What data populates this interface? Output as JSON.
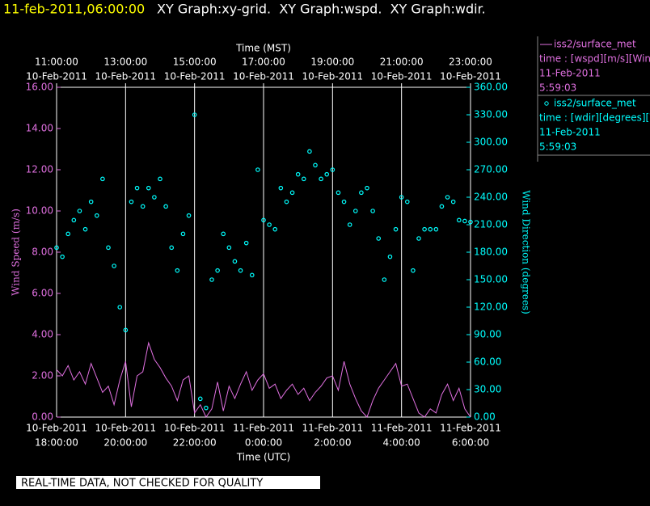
{
  "chart_data": {
    "type": "xy",
    "title_time": "11-feb-2011,06:00:00",
    "title": "XY Graph:xy-grid.  XY Graph:wspd.  XY Graph:wdir.",
    "x_top_label": "Time (MST)",
    "x_label": "Time (UTC)",
    "y_label": "Wind Speed (m/s)",
    "y2_label": "Wind Direction (degrees)",
    "footer": "REAL-TIME DATA, NOT CHECKED FOR QUALITY",
    "grid": true,
    "xlim": [
      "2011-02-10T18:00",
      "2011-02-11T06:00"
    ],
    "xticks": [
      {
        "value": "2011-02-10T18:00",
        "label": [
          "10-Feb-2011",
          "18:00:00"
        ]
      },
      {
        "value": "2011-02-10T20:00",
        "label": [
          "10-Feb-2011",
          "20:00:00"
        ]
      },
      {
        "value": "2011-02-10T22:00",
        "label": [
          "10-Feb-2011",
          "22:00:00"
        ]
      },
      {
        "value": "2011-02-11T00:00",
        "label": [
          "11-Feb-2011",
          "0:00:00"
        ]
      },
      {
        "value": "2011-02-11T02:00",
        "label": [
          "11-Feb-2011",
          "2:00:00"
        ]
      },
      {
        "value": "2011-02-11T04:00",
        "label": [
          "11-Feb-2011",
          "4:00:00"
        ]
      },
      {
        "value": "2011-02-11T06:00",
        "label": [
          "11-Feb-2011",
          "6:00:00"
        ]
      }
    ],
    "x2ticks": [
      {
        "value": "2011-02-10T18:00",
        "label": [
          "11:00:00",
          "10-Feb-2011"
        ]
      },
      {
        "value": "2011-02-10T20:00",
        "label": [
          "13:00:00",
          "10-Feb-2011"
        ]
      },
      {
        "value": "2011-02-10T22:00",
        "label": [
          "15:00:00",
          "10-Feb-2011"
        ]
      },
      {
        "value": "2011-02-11T00:00",
        "label": [
          "17:00:00",
          "10-Feb-2011"
        ]
      },
      {
        "value": "2011-02-11T02:00",
        "label": [
          "19:00:00",
          "10-Feb-2011"
        ]
      },
      {
        "value": "2011-02-11T04:00",
        "label": [
          "21:00:00",
          "10-Feb-2011"
        ]
      },
      {
        "value": "2011-02-11T06:00",
        "label": [
          "23:00:00",
          "10-Feb-2011"
        ]
      }
    ],
    "ylim": [
      0,
      16
    ],
    "yticks": [
      {
        "value": 0,
        "label": "0.00"
      },
      {
        "value": 2,
        "label": "2.00"
      },
      {
        "value": 4,
        "label": "4.00"
      },
      {
        "value": 6,
        "label": "6.00"
      },
      {
        "value": 8,
        "label": "8.00"
      },
      {
        "value": 10,
        "label": "10.00"
      },
      {
        "value": 12,
        "label": "12.00"
      },
      {
        "value": 14,
        "label": "14.00"
      },
      {
        "value": 16,
        "label": "16.00"
      }
    ],
    "y2lim": [
      0,
      360
    ],
    "y2ticks": [
      {
        "value": 0,
        "label": "0.00"
      },
      {
        "value": 30,
        "label": "30.00"
      },
      {
        "value": 60,
        "label": "60.00"
      },
      {
        "value": 90,
        "label": "90.00"
      },
      {
        "value": 120,
        "label": "120.00"
      },
      {
        "value": 150,
        "label": "150.00"
      },
      {
        "value": 180,
        "label": "180.00"
      },
      {
        "value": 210,
        "label": "210.00"
      },
      {
        "value": 240,
        "label": "240.00"
      },
      {
        "value": 270,
        "label": "270.00"
      },
      {
        "value": 300,
        "label": "300.00"
      },
      {
        "value": 330,
        "label": "330.00"
      },
      {
        "value": 360,
        "label": "360.00"
      }
    ],
    "x": [
      "2011-02-10T18:00",
      "2011-02-10T18:10",
      "2011-02-10T18:20",
      "2011-02-10T18:30",
      "2011-02-10T18:40",
      "2011-02-10T18:50",
      "2011-02-10T19:00",
      "2011-02-10T19:10",
      "2011-02-10T19:20",
      "2011-02-10T19:30",
      "2011-02-10T19:40",
      "2011-02-10T19:50",
      "2011-02-10T20:00",
      "2011-02-10T20:10",
      "2011-02-10T20:20",
      "2011-02-10T20:30",
      "2011-02-10T20:40",
      "2011-02-10T20:50",
      "2011-02-10T21:00",
      "2011-02-10T21:10",
      "2011-02-10T21:20",
      "2011-02-10T21:30",
      "2011-02-10T21:40",
      "2011-02-10T21:50",
      "2011-02-10T22:00",
      "2011-02-10T22:10",
      "2011-02-10T22:20",
      "2011-02-10T22:30",
      "2011-02-10T22:40",
      "2011-02-10T22:50",
      "2011-02-10T23:00",
      "2011-02-10T23:10",
      "2011-02-10T23:20",
      "2011-02-10T23:30",
      "2011-02-10T23:40",
      "2011-02-10T23:50",
      "2011-02-11T00:00",
      "2011-02-11T00:10",
      "2011-02-11T00:20",
      "2011-02-11T00:30",
      "2011-02-11T00:40",
      "2011-02-11T00:50",
      "2011-02-11T01:00",
      "2011-02-11T01:10",
      "2011-02-11T01:20",
      "2011-02-11T01:30",
      "2011-02-11T01:40",
      "2011-02-11T01:50",
      "2011-02-11T02:00",
      "2011-02-11T02:10",
      "2011-02-11T02:20",
      "2011-02-11T02:30",
      "2011-02-11T02:40",
      "2011-02-11T02:50",
      "2011-02-11T03:00",
      "2011-02-11T03:10",
      "2011-02-11T03:20",
      "2011-02-11T03:30",
      "2011-02-11T03:40",
      "2011-02-11T03:50",
      "2011-02-11T04:00",
      "2011-02-11T04:10",
      "2011-02-11T04:20",
      "2011-02-11T04:30",
      "2011-02-11T04:40",
      "2011-02-11T04:50",
      "2011-02-11T05:00",
      "2011-02-11T05:10",
      "2011-02-11T05:20",
      "2011-02-11T05:30",
      "2011-02-11T05:40",
      "2011-02-11T05:50",
      "2011-02-11T06:00"
    ],
    "series": [
      {
        "name": "iss2/surface_met",
        "type": "line",
        "color": "#e070e0",
        "legend_lines": [
          "time : [wspd][m/s][Wind",
          "11-Feb-2011",
          "5:59:03"
        ],
        "values": [
          2.3,
          2.0,
          2.5,
          1.8,
          2.2,
          1.6,
          2.6,
          1.9,
          1.2,
          1.5,
          0.6,
          1.8,
          2.7,
          0.5,
          2.0,
          2.2,
          3.6,
          2.8,
          2.4,
          1.9,
          1.5,
          0.8,
          1.8,
          2.0,
          0.2,
          0.6,
          0.0,
          0.4,
          1.7,
          0.3,
          1.5,
          0.9,
          1.6,
          2.2,
          1.3,
          1.8,
          2.1,
          1.4,
          1.6,
          0.9,
          1.3,
          1.6,
          1.1,
          1.4,
          0.8,
          1.2,
          1.5,
          1.9,
          2.0,
          1.3,
          2.7,
          1.6,
          0.9,
          0.3,
          0.0,
          0.8,
          1.4,
          1.8,
          2.2,
          2.6,
          1.5,
          1.6,
          0.9,
          0.2,
          0.0,
          0.4,
          0.2,
          1.1,
          1.6,
          0.8,
          1.4,
          0.4,
          0.0
        ]
      },
      {
        "name": "iss2/surface_met",
        "type": "scatter",
        "axis": "y2",
        "color": "#00ffff",
        "legend_lines": [
          "time : [wdir][degrees][W",
          "11-Feb-2011",
          "5:59:03"
        ],
        "values": [
          185,
          175,
          200,
          215,
          225,
          205,
          235,
          220,
          260,
          185,
          165,
          120,
          95,
          235,
          250,
          230,
          250,
          240,
          260,
          230,
          185,
          160,
          200,
          220,
          330,
          20,
          10,
          150,
          160,
          200,
          185,
          170,
          160,
          190,
          155,
          270,
          215,
          210,
          205,
          250,
          235,
          245,
          265,
          260,
          290,
          275,
          260,
          265,
          270,
          245,
          235,
          210,
          225,
          245,
          250,
          225,
          195,
          150,
          175,
          205,
          240,
          235,
          160,
          195,
          205,
          205,
          205,
          230,
          240,
          235,
          215,
          214,
          213
        ]
      }
    ]
  }
}
